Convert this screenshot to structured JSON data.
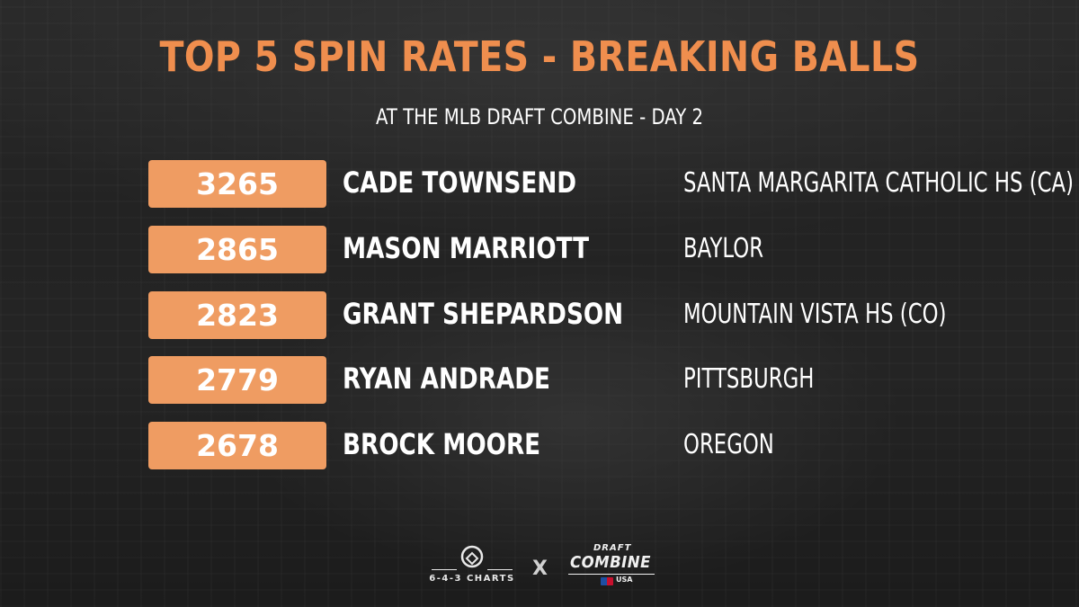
{
  "title": "TOP 5 SPIN RATES - BREAKING BALLS",
  "subtitle": "AT THE MLB DRAFT COMBINE - DAY 2",
  "rows": [
    {
      "spin": "3265",
      "player": "CADE TOWNSEND",
      "school": "SANTA MARGARITA CATHOLIC HS (CA)"
    },
    {
      "spin": "2865",
      "player": "MASON MARRIOTT",
      "school": "BAYLOR"
    },
    {
      "spin": "2823",
      "player": "GRANT SHEPARDSON",
      "school": "MOUNTAIN VISTA HS (CO)"
    },
    {
      "spin": "2779",
      "player": "RYAN ANDRADE",
      "school": "PITTSBURGH"
    },
    {
      "spin": "2678",
      "player": "BROCK MOORE",
      "school": "OREGON"
    }
  ],
  "footer": {
    "logo_left_text": "6-4-3 CHARTS",
    "separator": "X",
    "logo_right_top": "DRAFT",
    "logo_right_main": "COMBINE",
    "logo_right_small": "USA"
  },
  "colors": {
    "accent": "#ef8e4e",
    "badge": "#ef9c62",
    "text": "#ffffff",
    "background": "#2a2a2a"
  },
  "icons": {
    "left_logo": "baseball-diamond-icon",
    "right_logo": "mlb-logo-icon"
  }
}
